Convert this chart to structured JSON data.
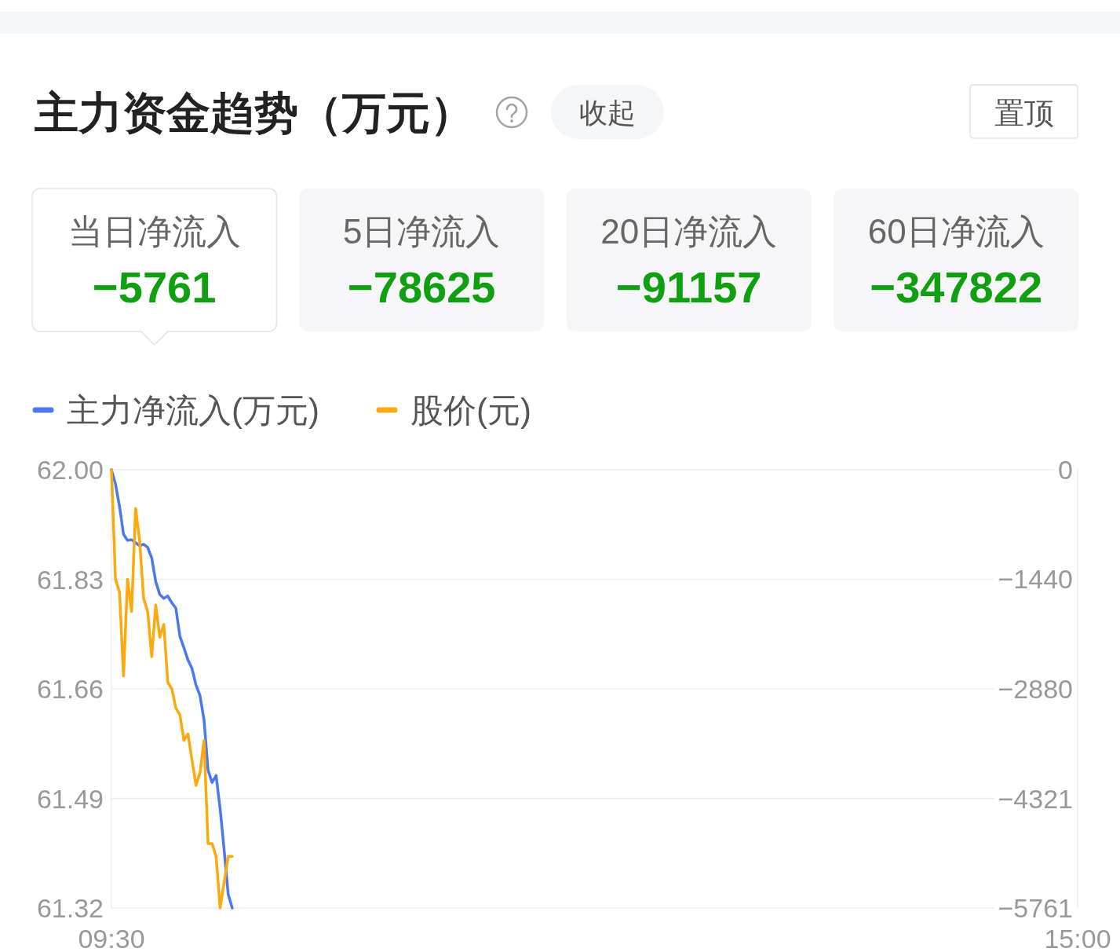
{
  "chart_data": [
    {
      "type": "other",
      "title": "主力资金趋势（万元）",
      "annotations": [
        "收起",
        "置顶"
      ],
      "categories": [
        "当日净流入",
        "5日净流入",
        "20日净流入",
        "60日净流入"
      ],
      "values": [
        -5761,
        -78625,
        -91157,
        -347822
      ],
      "data_labels": true
    },
    {
      "type": "line",
      "categories": [
        "09:30",
        null,
        null,
        null,
        null,
        null,
        null,
        null,
        null,
        null,
        null,
        null,
        null,
        null,
        null,
        null,
        null,
        null,
        null,
        null,
        null,
        null,
        null,
        null,
        null,
        null,
        null,
        null,
        null,
        null,
        null,
        null,
        null,
        null,
        null,
        null,
        null,
        null,
        null,
        null,
        null,
        null,
        null,
        null,
        null,
        null,
        null,
        null,
        null,
        null,
        null,
        null,
        null,
        null,
        null,
        null,
        null,
        null,
        null,
        null,
        null,
        null,
        null,
        null,
        null,
        null,
        null,
        null,
        null,
        null,
        null,
        null,
        null,
        null,
        null,
        null,
        null,
        null,
        null,
        null,
        null,
        null,
        null,
        null,
        null,
        null,
        null,
        null,
        null,
        null,
        null,
        null,
        null,
        null,
        null,
        null,
        null,
        null,
        null,
        null,
        null,
        null,
        null,
        null,
        null,
        null,
        null,
        null,
        null,
        null,
        null,
        null,
        null,
        null,
        null,
        null,
        null,
        null,
        null,
        null,
        null,
        null,
        null,
        null,
        null,
        null,
        null,
        null,
        null,
        null,
        null,
        null,
        null,
        null,
        null,
        null,
        null,
        null,
        null,
        null,
        null,
        null,
        null,
        null,
        null,
        null,
        null,
        null,
        null,
        null,
        null,
        null,
        null,
        null,
        null,
        null,
        null,
        null,
        null,
        null,
        null,
        null,
        null,
        null,
        null,
        null,
        null,
        null,
        null,
        null,
        null,
        null,
        null,
        null,
        null,
        null,
        null,
        null,
        null,
        null,
        null,
        null,
        null,
        null,
        null,
        null,
        null,
        null,
        null,
        null,
        null,
        null,
        null,
        null,
        null,
        null,
        null,
        null,
        null,
        null,
        null,
        null,
        null,
        null,
        null,
        null,
        null,
        null,
        null,
        null,
        null,
        null,
        null,
        null,
        null,
        null,
        null,
        null,
        null,
        null,
        null,
        null,
        null,
        null,
        null,
        null,
        null,
        null,
        null,
        null,
        null,
        null,
        null,
        null,
        null,
        null,
        null,
        null,
        null,
        null,
        "15:00"
      ],
      "series": [
        {
          "name": "主力净流入(万元)",
          "color": "#4b78ee",
          "axis": "y2",
          "values": [
            0,
            -190,
            -480,
            -850,
            -930,
            -920,
            -960,
            -1000,
            -980,
            -1020,
            -1160,
            -1470,
            -1640,
            -1690,
            -1660,
            -1750,
            -1820,
            -2190,
            -2340,
            -2500,
            -2610,
            -2830,
            -2970,
            -3290,
            -3950,
            -4110,
            -4020,
            -4460,
            -5000,
            -5580,
            -5761,
            null,
            null,
            null,
            null,
            null,
            null,
            null,
            null,
            null,
            null,
            null,
            null,
            null,
            null,
            null,
            null,
            null,
            null,
            null,
            null,
            null,
            null,
            null,
            null,
            null,
            null,
            null,
            null,
            null,
            null,
            null,
            null,
            null,
            null,
            null,
            null,
            null,
            null,
            null,
            null,
            null,
            null,
            null,
            null,
            null,
            null,
            null,
            null,
            null,
            null,
            null,
            null,
            null,
            null,
            null,
            null,
            null,
            null,
            null,
            null,
            null,
            null,
            null,
            null,
            null,
            null,
            null,
            null,
            null,
            null,
            null,
            null,
            null,
            null,
            null,
            null,
            null,
            null,
            null,
            null,
            null,
            null,
            null,
            null,
            null,
            null,
            null,
            null,
            null,
            null,
            null,
            null,
            null,
            null,
            null,
            null,
            null,
            null,
            null,
            null,
            null,
            null,
            null,
            null,
            null,
            null,
            null,
            null,
            null,
            null,
            null,
            null,
            null,
            null,
            null,
            null,
            null,
            null,
            null,
            null,
            null,
            null,
            null,
            null,
            null,
            null,
            null,
            null,
            null,
            null,
            null,
            null,
            null,
            null,
            null,
            null,
            null,
            null,
            null,
            null,
            null,
            null,
            null,
            null,
            null,
            null,
            null,
            null,
            null,
            null,
            null,
            null,
            null,
            null,
            null,
            null,
            null,
            null,
            null,
            null,
            null,
            null,
            null,
            null,
            null,
            null,
            null,
            null,
            null,
            null,
            null,
            null,
            null,
            null,
            null,
            null,
            null,
            null,
            null,
            null,
            null,
            null,
            null,
            null,
            null,
            null,
            null,
            null,
            null,
            null,
            null,
            null,
            null,
            null,
            null,
            null,
            null,
            null,
            null,
            null,
            null,
            null,
            null,
            null,
            null,
            null,
            null,
            null,
            null,
            null
          ]
        },
        {
          "name": "股价(元)",
          "color": "#fba90c",
          "values": [
            62.0,
            61.83,
            61.81,
            61.68,
            61.83,
            61.78,
            61.94,
            61.89,
            61.8,
            61.78,
            61.71,
            61.79,
            61.74,
            61.76,
            61.67,
            61.66,
            61.63,
            61.62,
            61.58,
            61.59,
            61.55,
            61.51,
            61.53,
            61.58,
            61.42,
            61.42,
            61.4,
            61.32,
            61.36,
            61.4,
            61.4,
            null,
            null,
            null,
            null,
            null,
            null,
            null,
            null,
            null,
            null,
            null,
            null,
            null,
            null,
            null,
            null,
            null,
            null,
            null,
            null,
            null,
            null,
            null,
            null,
            null,
            null,
            null,
            null,
            null,
            null,
            null,
            null,
            null,
            null,
            null,
            null,
            null,
            null,
            null,
            null,
            null,
            null,
            null,
            null,
            null,
            null,
            null,
            null,
            null,
            null,
            null,
            null,
            null,
            null,
            null,
            null,
            null,
            null,
            null,
            null,
            null,
            null,
            null,
            null,
            null,
            null,
            null,
            null,
            null,
            null,
            null,
            null,
            null,
            null,
            null,
            null,
            null,
            null,
            null,
            null,
            null,
            null,
            null,
            null,
            null,
            null,
            null,
            null,
            null,
            null,
            null,
            null,
            null,
            null,
            null,
            null,
            null,
            null,
            null,
            null,
            null,
            null,
            null,
            null,
            null,
            null,
            null,
            null,
            null,
            null,
            null,
            null,
            null,
            null,
            null,
            null,
            null,
            null,
            null,
            null,
            null,
            null,
            null,
            null,
            null,
            null,
            null,
            null,
            null,
            null,
            null,
            null,
            null,
            null,
            null,
            null,
            null,
            null,
            null,
            null,
            null,
            null,
            null,
            null,
            null,
            null,
            null,
            null,
            null,
            null,
            null,
            null,
            null,
            null,
            null,
            null,
            null,
            null,
            null,
            null,
            null,
            null,
            null,
            null,
            null,
            null,
            null,
            null,
            null,
            null,
            null,
            null,
            null,
            null,
            null,
            null,
            null,
            null,
            null,
            null,
            null,
            null,
            null,
            null,
            null,
            null,
            null,
            null,
            null,
            null,
            null,
            null,
            null,
            null,
            null,
            null,
            null,
            null,
            null,
            null,
            null,
            null,
            null,
            null,
            null,
            null,
            null,
            null,
            null,
            null
          ]
        }
      ],
      "ylim": [
        61.32,
        62.0
      ],
      "yticks": [
        {
          "value": 62.0,
          "label": "62.00"
        },
        61.83,
        61.66,
        61.49,
        61.32
      ],
      "y2lim": [
        -5761,
        0
      ],
      "y2ticks": [
        0,
        -1440,
        -2880,
        -4321,
        -5761
      ],
      "grid": "y",
      "legend": "top left"
    }
  ]
}
